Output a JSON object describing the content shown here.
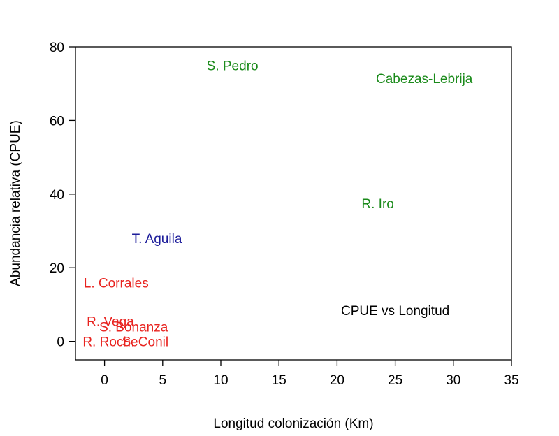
{
  "chart_data": {
    "type": "scatter",
    "title": "",
    "xlabel": "Longitud colonización (Km)",
    "ylabel": "Abundancia relativa (CPUE)",
    "xlim": [
      -2.5,
      35
    ],
    "ylim": [
      -5,
      80
    ],
    "xticks": [
      0,
      5,
      10,
      15,
      20,
      25,
      30,
      35
    ],
    "yticks": [
      0,
      20,
      40,
      60,
      80
    ],
    "grid": false,
    "annotation": "CPUE vs Longitud",
    "colors": {
      "red": "#e8231f",
      "green": "#1a8a1a",
      "blue": "#1c1c9a"
    },
    "points": [
      {
        "label": "S. Pedro",
        "x": 11,
        "y": 75,
        "color": "green"
      },
      {
        "label": "Cabezas-Lebrija",
        "x": 27.5,
        "y": 71.5,
        "color": "green"
      },
      {
        "label": "R. Iro",
        "x": 23.5,
        "y": 37.5,
        "color": "green"
      },
      {
        "label": "T. Aguila",
        "x": 4.5,
        "y": 28,
        "color": "blue"
      },
      {
        "label": "L. Corrales",
        "x": 1,
        "y": 16,
        "color": "red"
      },
      {
        "label": "R. Vega",
        "x": 0.5,
        "y": 5.5,
        "color": "red"
      },
      {
        "label": "S. Bonanza",
        "x": 2.5,
        "y": 4,
        "color": "red"
      },
      {
        "label": "R. Roche",
        "x": 0.5,
        "y": 0,
        "color": "red"
      },
      {
        "label": "S. Conil",
        "x": 3.5,
        "y": 0,
        "color": "red"
      }
    ]
  }
}
